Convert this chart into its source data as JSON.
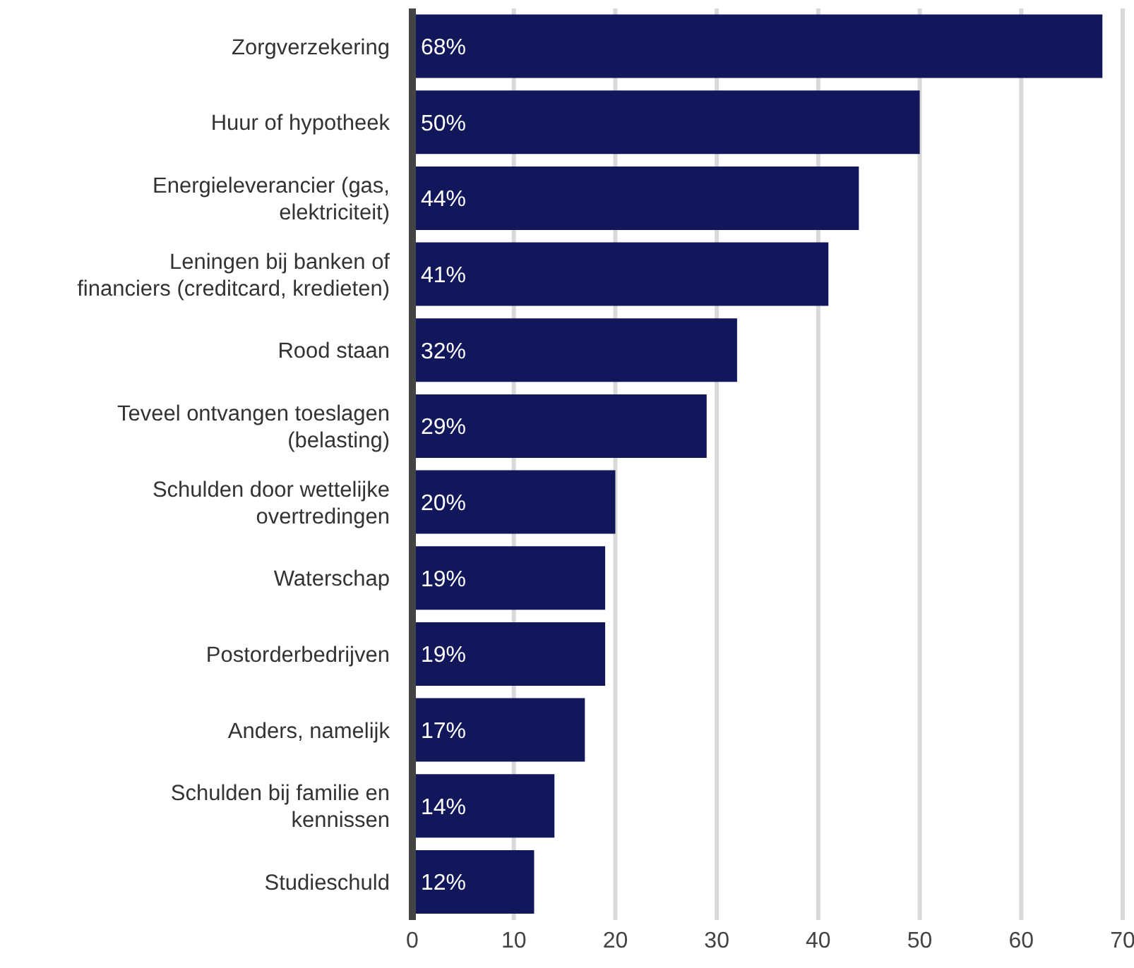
{
  "chart_data": {
    "type": "bar",
    "orientation": "horizontal",
    "categories": [
      "Zorgverzekering",
      "Huur of hypotheek",
      "Energieleverancier (gas,\nelektriciteit)",
      "Leningen bij banken of\nfinanciers (creditcard, kredieten)",
      "Rood staan",
      "Teveel ontvangen toeslagen\n(belasting)",
      "Schulden door wettelijke\novertredingen",
      "Waterschap",
      "Postorderbedrijven",
      "Anders, namelijk",
      "Schulden bij familie en\nkennissen",
      "Studieschuld"
    ],
    "values": [
      68,
      50,
      44,
      41,
      32,
      29,
      20,
      19,
      19,
      17,
      14,
      12
    ],
    "value_labels": [
      "68%",
      "50%",
      "44%",
      "41%",
      "32%",
      "29%",
      "20%",
      "19%",
      "19%",
      "17%",
      "14%",
      "12%"
    ],
    "color": "#12175c",
    "xlim": [
      0,
      70
    ],
    "xticks": [
      0,
      10,
      20,
      30,
      40,
      50,
      60,
      70
    ],
    "grid": "x"
  }
}
